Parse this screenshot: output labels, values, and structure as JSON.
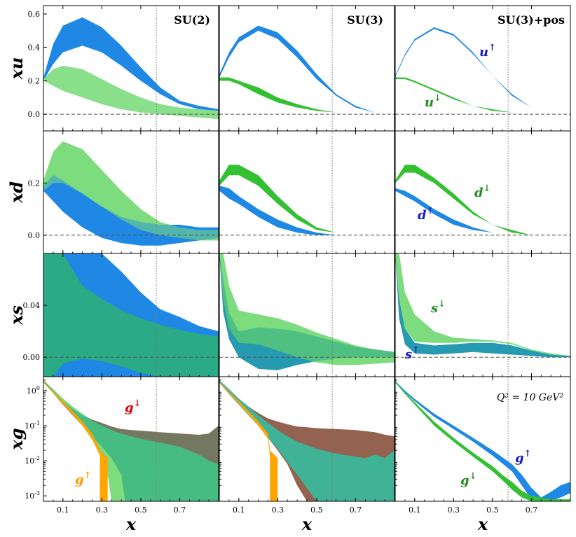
{
  "chart_data": {
    "type": "area",
    "title": "",
    "xlabel": "x",
    "xlim": [
      0,
      0.9
    ],
    "xticks": [
      "0.1",
      "0.3",
      "0.5",
      "0.7"
    ],
    "reference_line_x": 0.58,
    "columns": [
      "SU(2)",
      "SU(3)",
      "SU(3)+pos"
    ],
    "rows": [
      {
        "ylabel": "xu",
        "ylim": [
          -0.1,
          0.65
        ],
        "yticks": [
          "0.0",
          "0.2",
          "0.4",
          "0.6"
        ]
      },
      {
        "ylabel": "xd",
        "ylim": [
          -0.07,
          0.4
        ],
        "yticks": [
          "0.0",
          "0.2"
        ]
      },
      {
        "ylabel": "xs",
        "ylim": [
          -0.015,
          0.08
        ],
        "yticks": [
          "0.00",
          "0.04"
        ]
      },
      {
        "ylabel": "xg",
        "scale": "log",
        "ylim": [
          0.0007,
          2.5
        ],
        "yticks": [
          "10^0",
          "10^-1",
          "10^-2",
          "10^-3"
        ]
      }
    ],
    "colors": {
      "up": "#1f88e5",
      "down": "#33c033",
      "down_light": "#7ddc7d",
      "overlap": "#2aaa85",
      "g_up": "#ffa500",
      "g_down": "#ff1a1a"
    },
    "labels": {
      "u_up": "u↑",
      "u_down": "u↓",
      "d_up": "d↑",
      "d_down": "d↓",
      "s_up": "s↑",
      "s_down": "s↓",
      "g_up": "g↑",
      "g_down": "g↓",
      "q2": "Q² = 10 GeV²"
    },
    "series": [
      {
        "name": "u↑ SU(2)",
        "x": [
          0,
          0.05,
          0.1,
          0.2,
          0.3,
          0.4,
          0.5,
          0.6,
          0.7,
          0.8,
          0.9
        ],
        "low": [
          0.2,
          0.3,
          0.37,
          0.41,
          0.37,
          0.29,
          0.2,
          0.12,
          0.06,
          0.03,
          0.02
        ],
        "high": [
          0.22,
          0.42,
          0.53,
          0.58,
          0.52,
          0.41,
          0.28,
          0.16,
          0.08,
          0.05,
          0.03
        ]
      },
      {
        "name": "u↓ SU(2)",
        "x": [
          0,
          0.05,
          0.1,
          0.2,
          0.3,
          0.4,
          0.5,
          0.6,
          0.7,
          0.8,
          0.9
        ],
        "low": [
          0.2,
          0.17,
          0.14,
          0.1,
          0.06,
          0.03,
          0.01,
          0.0,
          -0.01,
          -0.02,
          -0.03
        ],
        "high": [
          0.21,
          0.27,
          0.29,
          0.27,
          0.21,
          0.15,
          0.1,
          0.06,
          0.04,
          0.03,
          0.02
        ]
      },
      {
        "name": "u↑ SU(3)",
        "x": [
          0,
          0.05,
          0.1,
          0.2,
          0.3,
          0.4,
          0.5,
          0.6,
          0.7,
          0.8,
          0.9
        ],
        "low": [
          0.22,
          0.34,
          0.43,
          0.5,
          0.45,
          0.34,
          0.21,
          0.11,
          0.04,
          0.01,
          0.0
        ],
        "high": [
          0.24,
          0.37,
          0.46,
          0.53,
          0.49,
          0.38,
          0.24,
          0.12,
          0.05,
          0.01,
          0.0
        ]
      },
      {
        "name": "u↓ SU(3)",
        "x": [
          0,
          0.05,
          0.1,
          0.2,
          0.3,
          0.4,
          0.5,
          0.6,
          0.7,
          0.8,
          0.9
        ],
        "low": [
          0.2,
          0.2,
          0.18,
          0.12,
          0.07,
          0.04,
          0.02,
          0.01,
          0.0,
          0.0,
          0.0
        ],
        "high": [
          0.22,
          0.22,
          0.2,
          0.16,
          0.1,
          0.06,
          0.03,
          0.01,
          0.0,
          0.0,
          0.0
        ]
      },
      {
        "name": "u↑ SU(3)+pos",
        "x": [
          0,
          0.05,
          0.1,
          0.2,
          0.3,
          0.4,
          0.5,
          0.6,
          0.7,
          0.8,
          0.9
        ],
        "low": [
          0.22,
          0.35,
          0.44,
          0.51,
          0.47,
          0.36,
          0.23,
          0.11,
          0.04,
          0.01,
          0.0
        ],
        "high": [
          0.23,
          0.36,
          0.45,
          0.52,
          0.48,
          0.37,
          0.23,
          0.12,
          0.04,
          0.01,
          0.0
        ]
      },
      {
        "name": "u↓ SU(3)+pos",
        "x": [
          0,
          0.05,
          0.1,
          0.2,
          0.3,
          0.4,
          0.5,
          0.6,
          0.7,
          0.8,
          0.9
        ],
        "low": [
          0.21,
          0.21,
          0.19,
          0.14,
          0.09,
          0.05,
          0.02,
          0.01,
          0.0,
          0.0,
          0.0
        ],
        "high": [
          0.22,
          0.22,
          0.2,
          0.15,
          0.1,
          0.05,
          0.03,
          0.01,
          0.0,
          0.0,
          0.0
        ]
      },
      {
        "name": "d↑ SU(2)",
        "x": [
          0,
          0.05,
          0.1,
          0.2,
          0.3,
          0.4,
          0.5,
          0.6,
          0.7,
          0.8,
          0.9
        ],
        "low": [
          0.17,
          0.13,
          0.09,
          0.03,
          -0.01,
          -0.03,
          -0.04,
          -0.04,
          -0.03,
          -0.02,
          -0.01
        ],
        "high": [
          0.19,
          0.23,
          0.21,
          0.16,
          0.11,
          0.07,
          0.05,
          0.04,
          0.04,
          0.03,
          0.03
        ]
      },
      {
        "name": "d↓ SU(2)",
        "x": [
          0,
          0.05,
          0.1,
          0.2,
          0.3,
          0.4,
          0.5,
          0.6,
          0.7,
          0.8,
          0.9
        ],
        "low": [
          0.17,
          0.2,
          0.2,
          0.16,
          0.11,
          0.06,
          0.02,
          0.0,
          -0.01,
          -0.02,
          -0.02
        ],
        "high": [
          0.21,
          0.32,
          0.36,
          0.33,
          0.25,
          0.17,
          0.1,
          0.05,
          0.03,
          0.02,
          0.02
        ]
      },
      {
        "name": "d↑ SU(3)",
        "x": [
          0,
          0.05,
          0.1,
          0.2,
          0.3,
          0.4,
          0.5,
          0.6,
          0.7,
          0.8,
          0.9
        ],
        "low": [
          0.17,
          0.14,
          0.12,
          0.07,
          0.03,
          0.01,
          0.0,
          0.0,
          0.0,
          0.0,
          0.0
        ],
        "high": [
          0.19,
          0.18,
          0.15,
          0.1,
          0.06,
          0.03,
          0.01,
          0.0,
          0.0,
          0.0,
          0.0
        ]
      },
      {
        "name": "d↓ SU(3)",
        "x": [
          0,
          0.05,
          0.1,
          0.2,
          0.3,
          0.4,
          0.5,
          0.6,
          0.7,
          0.8,
          0.9
        ],
        "low": [
          0.19,
          0.23,
          0.23,
          0.19,
          0.12,
          0.06,
          0.02,
          0.01,
          0.0,
          0.0,
          0.0
        ],
        "high": [
          0.21,
          0.27,
          0.27,
          0.23,
          0.15,
          0.08,
          0.03,
          0.01,
          0.0,
          0.0,
          0.0
        ]
      },
      {
        "name": "d↑ SU(3)+pos",
        "x": [
          0,
          0.05,
          0.1,
          0.2,
          0.3,
          0.4,
          0.5,
          0.6,
          0.7,
          0.8,
          0.9
        ],
        "low": [
          0.17,
          0.15,
          0.13,
          0.08,
          0.04,
          0.02,
          0.01,
          0.0,
          0.0,
          0.0,
          0.0
        ],
        "high": [
          0.18,
          0.17,
          0.15,
          0.1,
          0.06,
          0.03,
          0.01,
          0.0,
          0.0,
          0.0,
          0.0
        ]
      },
      {
        "name": "d↓ SU(3)+pos",
        "x": [
          0,
          0.05,
          0.1,
          0.2,
          0.3,
          0.4,
          0.5,
          0.6,
          0.7,
          0.8,
          0.9
        ],
        "low": [
          0.2,
          0.24,
          0.24,
          0.2,
          0.14,
          0.08,
          0.04,
          0.01,
          0.0,
          0.0,
          0.0
        ],
        "high": [
          0.21,
          0.27,
          0.27,
          0.22,
          0.16,
          0.09,
          0.04,
          0.02,
          0.0,
          0.0,
          0.0
        ]
      },
      {
        "name": "s↑ SU(2)",
        "x": [
          0,
          0.05,
          0.1,
          0.2,
          0.3,
          0.4,
          0.5,
          0.6,
          0.7,
          0.8,
          0.9
        ],
        "low": [
          -0.015,
          -0.015,
          -0.015,
          -0.015,
          -0.015,
          -0.015,
          -0.015,
          -0.015,
          -0.015,
          -0.015,
          -0.015
        ],
        "high": [
          0.08,
          0.08,
          0.08,
          0.08,
          0.08,
          0.066,
          0.05,
          0.037,
          0.031,
          0.024,
          0.02
        ]
      },
      {
        "name": "s↓ SU(2)",
        "x": [
          0,
          0.05,
          0.1,
          0.2,
          0.3,
          0.4,
          0.5,
          0.6,
          0.7,
          0.8,
          0.9
        ],
        "low": [
          -0.015,
          -0.015,
          -0.005,
          -0.001,
          -0.003,
          -0.007,
          -0.012,
          -0.015,
          -0.015,
          -0.015,
          -0.015
        ],
        "high": [
          0.08,
          0.08,
          0.08,
          0.055,
          0.045,
          0.036,
          0.03,
          0.025,
          0.021,
          0.018,
          0.016
        ]
      },
      {
        "name": "s↑ SU(3)",
        "x": [
          0,
          0.02,
          0.05,
          0.1,
          0.2,
          0.3,
          0.4,
          0.5,
          0.6,
          0.7,
          0.8,
          0.9
        ],
        "low": [
          0.08,
          0.035,
          0.014,
          0.0,
          -0.009,
          -0.01,
          -0.006,
          -0.003,
          -0.001,
          0.0,
          0.0,
          0.0
        ],
        "high": [
          0.08,
          0.06,
          0.034,
          0.02,
          0.023,
          0.022,
          0.02,
          0.016,
          0.012,
          0.008,
          0.006,
          0.004
        ]
      },
      {
        "name": "s↓ SU(3)",
        "x": [
          0,
          0.02,
          0.05,
          0.1,
          0.2,
          0.3,
          0.4,
          0.5,
          0.6,
          0.7,
          0.8,
          0.9
        ],
        "low": [
          0.08,
          0.045,
          0.022,
          0.011,
          0.01,
          0.005,
          0.0,
          -0.004,
          -0.006,
          -0.006,
          -0.005,
          -0.004
        ],
        "high": [
          0.08,
          0.08,
          0.055,
          0.036,
          0.033,
          0.03,
          0.025,
          0.019,
          0.014,
          0.009,
          0.006,
          0.004
        ]
      },
      {
        "name": "s↑ SU(3)+pos",
        "x": [
          0,
          0.02,
          0.05,
          0.1,
          0.2,
          0.3,
          0.4,
          0.5,
          0.6,
          0.7,
          0.8,
          0.9
        ],
        "low": [
          0.08,
          0.03,
          0.01,
          0.003,
          0.002,
          0.003,
          0.004,
          0.003,
          0.002,
          0.001,
          0.0,
          0.0
        ],
        "high": [
          0.08,
          0.045,
          0.022,
          0.011,
          0.009,
          0.01,
          0.011,
          0.011,
          0.009,
          0.005,
          0.002,
          0.001
        ]
      },
      {
        "name": "s↓ SU(3)+pos",
        "x": [
          0,
          0.02,
          0.05,
          0.1,
          0.2,
          0.3,
          0.4,
          0.5,
          0.6,
          0.7,
          0.8,
          0.9
        ],
        "low": [
          0.08,
          0.045,
          0.022,
          0.012,
          0.011,
          0.011,
          0.012,
          0.012,
          0.01,
          0.005,
          0.002,
          0.001
        ],
        "high": [
          0.08,
          0.08,
          0.05,
          0.033,
          0.02,
          0.015,
          0.014,
          0.013,
          0.011,
          0.006,
          0.003,
          0.001
        ]
      },
      {
        "name": "g↑ SU(2)",
        "x": [
          0,
          0.05,
          0.1,
          0.15,
          0.2,
          0.25,
          0.3,
          0.33,
          0.35,
          0.38,
          0.4,
          0.45,
          0.5,
          0.6,
          0.7,
          0.8,
          0.85,
          0.9
        ],
        "low": [
          1.7,
          0.9,
          0.45,
          0.22,
          0.1,
          0.04,
          0.012,
          0.004,
          0.0007,
          0.0007,
          0.0007,
          0.0007,
          0.0007,
          0.0007,
          0.0007,
          0.0007,
          0.0007,
          0.0007
        ],
        "high": [
          2.0,
          1.1,
          0.6,
          0.35,
          0.22,
          0.14,
          0.1,
          0.085,
          0.075,
          0.065,
          0.06,
          0.05,
          0.042,
          0.033,
          0.025,
          0.015,
          0.01,
          0.008
        ]
      },
      {
        "name": "g↓ SU(2)",
        "x": [
          0,
          0.05,
          0.1,
          0.15,
          0.2,
          0.25,
          0.3,
          0.35,
          0.4,
          0.42,
          0.45,
          0.5,
          0.6,
          0.7,
          0.8,
          0.85,
          0.9
        ],
        "low": [
          1.7,
          0.85,
          0.4,
          0.2,
          0.1,
          0.05,
          0.025,
          0.012,
          0.004,
          0.0007,
          0.0007,
          0.0007,
          0.0007,
          0.0007,
          0.0007,
          0.0007,
          0.0007
        ],
        "high": [
          2.0,
          1.0,
          0.5,
          0.3,
          0.2,
          0.15,
          0.12,
          0.095,
          0.08,
          0.078,
          0.075,
          0.072,
          0.065,
          0.06,
          0.055,
          0.06,
          0.1
        ]
      },
      {
        "name": "g↑ SU(3)",
        "x": [
          0,
          0.05,
          0.1,
          0.15,
          0.2,
          0.25,
          0.3,
          0.35,
          0.4,
          0.5,
          0.6,
          0.7,
          0.75,
          0.8,
          0.85,
          0.9
        ],
        "low": [
          1.7,
          0.8,
          0.4,
          0.2,
          0.1,
          0.045,
          0.022,
          0.009,
          0.004,
          0.0007,
          0.0007,
          0.0007,
          0.0007,
          0.0007,
          0.0007,
          0.0007
        ],
        "high": [
          2.0,
          1.1,
          0.6,
          0.35,
          0.2,
          0.12,
          0.075,
          0.05,
          0.035,
          0.022,
          0.016,
          0.013,
          0.012,
          0.015,
          0.012,
          0.02
        ]
      },
      {
        "name": "g↓ SU(3)",
        "x": [
          0,
          0.05,
          0.1,
          0.15,
          0.2,
          0.25,
          0.3,
          0.35,
          0.4,
          0.45,
          0.5,
          0.6,
          0.7,
          0.8,
          0.85,
          0.9
        ],
        "low": [
          1.7,
          0.8,
          0.4,
          0.2,
          0.1,
          0.045,
          0.02,
          0.008,
          0.002,
          0.0007,
          0.0007,
          0.0007,
          0.0007,
          0.0007,
          0.0007,
          0.0007
        ],
        "high": [
          2.0,
          1.0,
          0.55,
          0.35,
          0.23,
          0.16,
          0.13,
          0.11,
          0.095,
          0.09,
          0.085,
          0.08,
          0.075,
          0.065,
          0.055,
          0.05
        ]
      },
      {
        "name": "g↑ SU(3)+pos",
        "x": [
          0,
          0.05,
          0.1,
          0.2,
          0.3,
          0.4,
          0.5,
          0.6,
          0.65,
          0.7,
          0.75,
          0.8,
          0.85,
          0.9
        ],
        "low": [
          1.8,
          0.9,
          0.5,
          0.18,
          0.08,
          0.035,
          0.014,
          0.005,
          0.002,
          0.0008,
          0.0007,
          0.0007,
          0.0009,
          0.0012
        ],
        "high": [
          1.9,
          1.0,
          0.58,
          0.22,
          0.1,
          0.045,
          0.02,
          0.008,
          0.004,
          0.0017,
          0.0009,
          0.0013,
          0.002,
          0.0025
        ]
      },
      {
        "name": "g↓ SU(3)+pos",
        "x": [
          0,
          0.05,
          0.1,
          0.2,
          0.3,
          0.4,
          0.5,
          0.55,
          0.6,
          0.65,
          0.7,
          0.8,
          0.9
        ],
        "low": [
          1.7,
          0.8,
          0.4,
          0.1,
          0.035,
          0.013,
          0.005,
          0.0028,
          0.0015,
          0.0009,
          0.0007,
          0.0007,
          0.0007
        ],
        "high": [
          1.8,
          0.9,
          0.47,
          0.13,
          0.045,
          0.017,
          0.007,
          0.004,
          0.0025,
          0.0014,
          0.001,
          0.0008,
          0.0008
        ]
      }
    ]
  }
}
